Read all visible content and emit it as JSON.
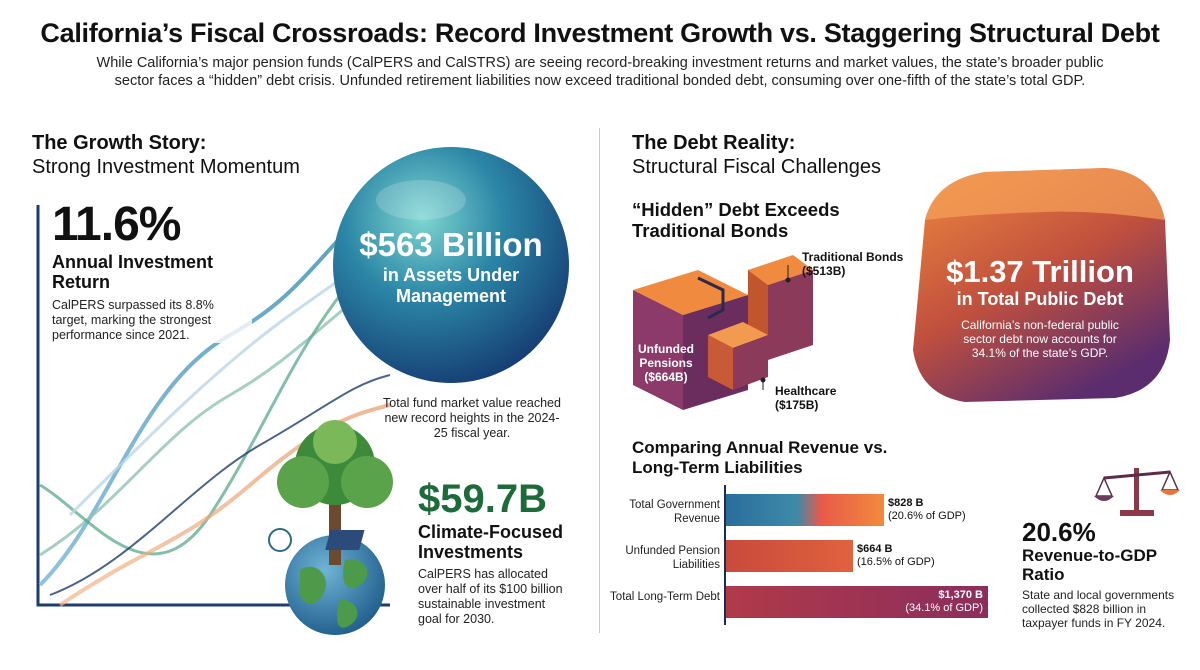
{
  "header": {
    "title": "California’s Fiscal Crossroads: Record Investment Growth vs. Staggering Structural Debt",
    "subtitle": "While California’s major pension funds (CalPERS and CalSTRS) are seeing record-breaking investment returns and market values, the state’s broader public sector faces a “hidden” debt crisis. Unfunded retirement liabilities now exceed traditional bonded debt, consuming over one-fifth of the state’s total GDP."
  },
  "growth": {
    "title_bold": "The Growth Story:",
    "title_light": "Strong Investment Momentum",
    "return_value": "11.6%",
    "return_label": "Annual Investment Return",
    "return_desc": "CalPERS surpassed its 8.8% target, marking the strongest performance since 2021.",
    "assets_value": "$563 Billion",
    "assets_label": "in Assets Under Management",
    "assets_desc": "Total fund market value reached new record heights in the 2024-25 fiscal year.",
    "climate_value": "$59.7B",
    "climate_label": "Climate-Focused Investments",
    "climate_desc": "CalPERS has allocated over half of its $100 billion sustainable investment goal for 2030."
  },
  "debt": {
    "title_bold": "The Debt Reality:",
    "title_light": "Structural Fiscal Challenges",
    "hidden_title": "“Hidden” Debt Exceeds Traditional Bonds",
    "bonds_label": "Traditional Bonds",
    "bonds_value": "($513B)",
    "pensions_label": "Unfunded Pensions",
    "pensions_value": "($664B)",
    "healthcare_label": "Healthcare",
    "healthcare_value": "($175B)",
    "total_value": "$1.37 Trillion",
    "total_label": "in Total Public Debt",
    "total_desc": "California’s non-federal public sector debt now accounts for 34.1% of the state’s GDP.",
    "ratio_value": "20.6%",
    "ratio_label": "Revenue-to-GDP Ratio",
    "ratio_desc": "State and local governments collected $828 billion in taxpayer funds in FY 2024."
  },
  "icons": {
    "cube": "stacked-cubes-icon",
    "gem": "debt-block-icon",
    "sphere": "assets-sphere-icon",
    "tree": "tree-globe-icon",
    "scale": "balance-scale-icon"
  },
  "colors": {
    "sphere": "#1f6f8f",
    "debt_orange": "#e8743a",
    "debt_purple": "#5b2d6e",
    "bar_revenue_start": "#2a6e9c",
    "bar_revenue_end": "#f28a3c",
    "bar_pension": "#c84a3c",
    "bar_total": "#8b2d5c"
  },
  "chart_data": {
    "type": "bar",
    "orientation": "horizontal",
    "title": "Comparing Annual Revenue vs. Long-Term Liabilities",
    "categories": [
      "Total Government Revenue",
      "Unfunded Pension Liabilities",
      "Total Long-Term Debt"
    ],
    "values": [
      828,
      664,
      1370
    ],
    "value_labels": [
      "$828 B",
      "$664 B",
      "$1,370 B"
    ],
    "sub_labels": [
      "(20.6% of GDP)",
      "(16.5% of GDP)",
      "(34.1% of GDP)"
    ],
    "xlim": [
      0,
      1370
    ],
    "grid": false
  }
}
